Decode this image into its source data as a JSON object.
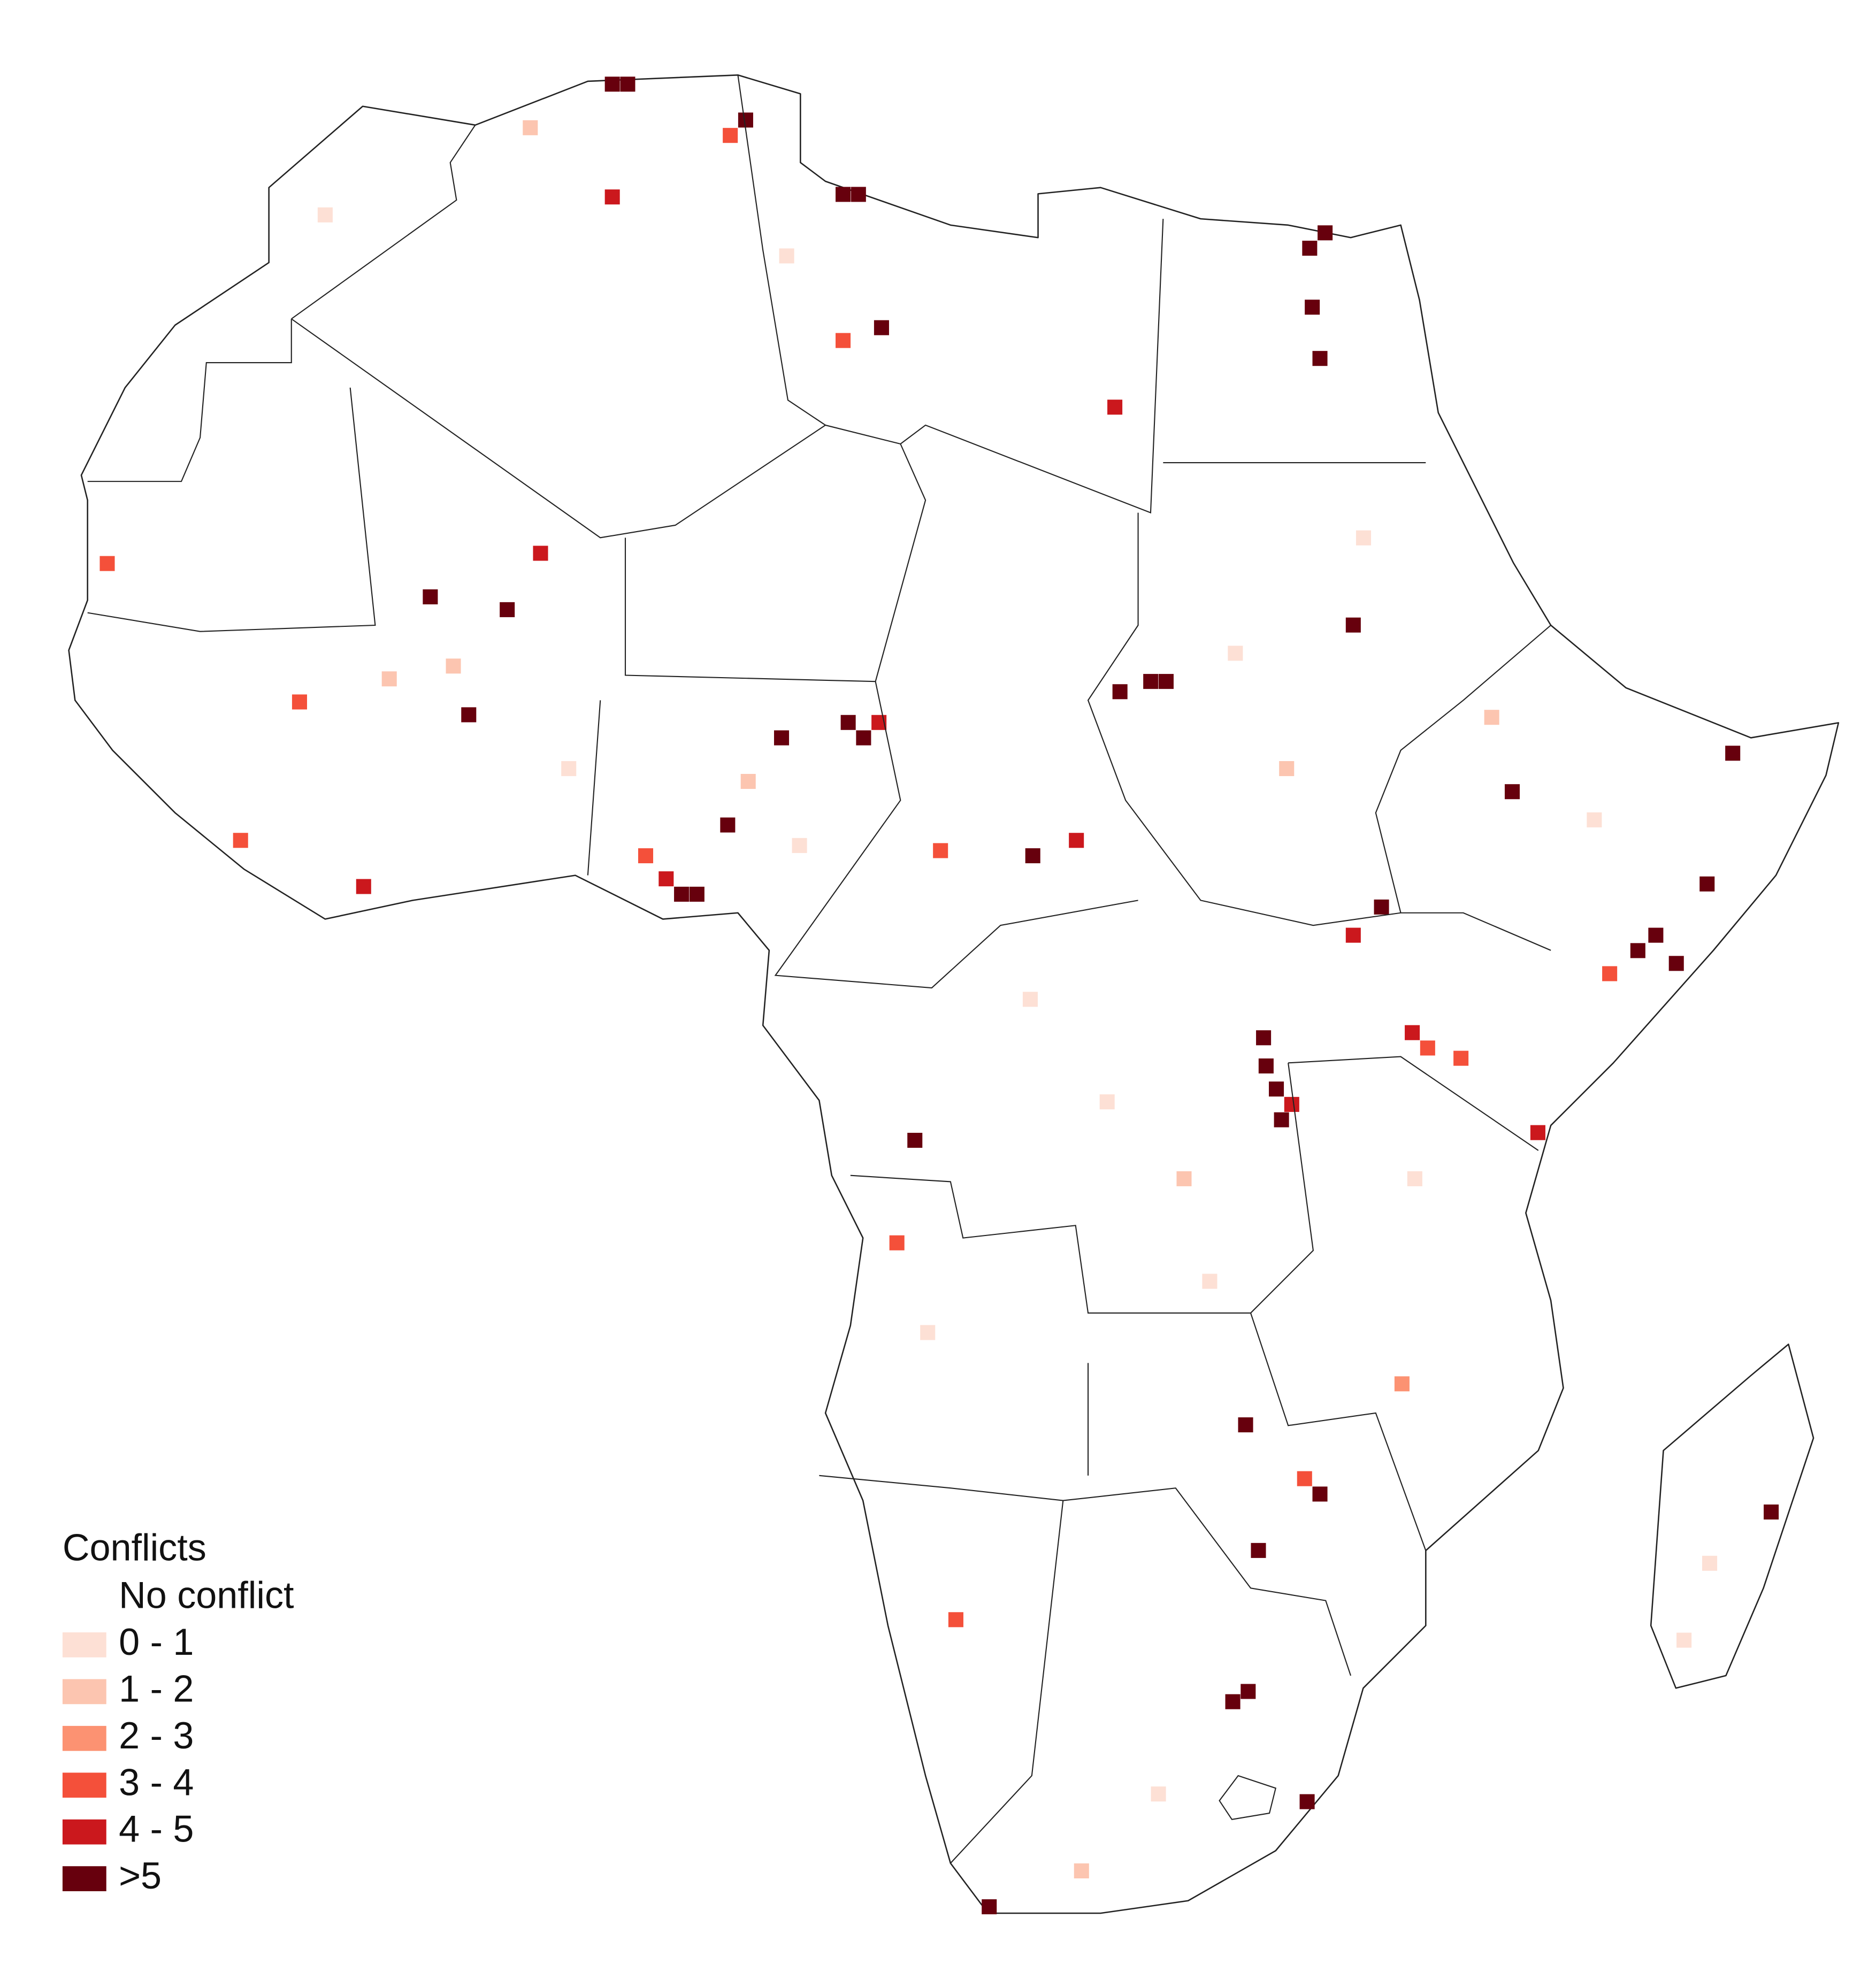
{
  "legend": {
    "title": "Conflicts",
    "items": [
      {
        "label": "No conflict",
        "color": "#ffffff"
      },
      {
        "label": "0 - 1",
        "color": "#fde0d5"
      },
      {
        "label": "1 - 2",
        "color": "#fcc5b0"
      },
      {
        "label": "2 - 3",
        "color": "#fc9272"
      },
      {
        "label": "3 - 4",
        "color": "#f4503a"
      },
      {
        "label": "4 - 5",
        "color": "#cb181d"
      },
      {
        "label": ">5",
        "color": "#67000d"
      }
    ]
  },
  "cells": [
    {
      "lon": 3.7,
      "lat": 36.7,
      "level": 6
    },
    {
      "lon": 4.3,
      "lat": 36.7,
      "level": 6
    },
    {
      "lon": 8.9,
      "lat": 35.3,
      "level": 6
    },
    {
      "lon": 8.3,
      "lat": 34.7,
      "level": 4
    },
    {
      "lon": 12.7,
      "lat": 32.4,
      "level": 6
    },
    {
      "lon": 13.3,
      "lat": 32.4,
      "level": 6
    },
    {
      "lon": 31.5,
      "lat": 30.9,
      "level": 6
    },
    {
      "lon": 30.9,
      "lat": 30.3,
      "level": 6
    },
    {
      "lon": 31.0,
      "lat": 28.0,
      "level": 6
    },
    {
      "lon": 31.3,
      "lat": 26.0,
      "level": 6
    },
    {
      "lon": 23.3,
      "lat": 24.1,
      "level": 5
    },
    {
      "lon": 12.7,
      "lat": 26.7,
      "level": 4
    },
    {
      "lon": 14.2,
      "lat": 27.2,
      "level": 6
    },
    {
      "lon": 3.7,
      "lat": 32.3,
      "level": 5
    },
    {
      "lon": -16.0,
      "lat": 18.0,
      "level": 4
    },
    {
      "lon": -3.4,
      "lat": 16.7,
      "level": 6
    },
    {
      "lon": -0.4,
      "lat": 16.2,
      "level": 6
    },
    {
      "lon": 0.9,
      "lat": 18.4,
      "level": 5
    },
    {
      "lon": -1.9,
      "lat": 12.1,
      "level": 6
    },
    {
      "lon": -8.5,
      "lat": 12.6,
      "level": 4
    },
    {
      "lon": 13.5,
      "lat": 11.2,
      "level": 6
    },
    {
      "lon": 12.9,
      "lat": 11.8,
      "level": 6
    },
    {
      "lon": 14.1,
      "lat": 11.8,
      "level": 5
    },
    {
      "lon": 10.3,
      "lat": 11.2,
      "level": 6
    },
    {
      "lon": 6.4,
      "lat": 5.1,
      "level": 6
    },
    {
      "lon": 7.0,
      "lat": 5.1,
      "level": 6
    },
    {
      "lon": 5.8,
      "lat": 5.7,
      "level": 5
    },
    {
      "lon": 5.0,
      "lat": 6.6,
      "level": 4
    },
    {
      "lon": 8.2,
      "lat": 7.8,
      "level": 6
    },
    {
      "lon": 24.7,
      "lat": 13.4,
      "level": 6
    },
    {
      "lon": 25.3,
      "lat": 13.4,
      "level": 6
    },
    {
      "lon": 23.5,
      "lat": 13.0,
      "level": 6
    },
    {
      "lon": 32.6,
      "lat": 15.6,
      "level": 6
    },
    {
      "lon": 29.1,
      "lat": -0.5,
      "level": 6
    },
    {
      "lon": 29.6,
      "lat": -2.5,
      "level": 6
    },
    {
      "lon": 29.8,
      "lat": -3.7,
      "level": 6
    },
    {
      "lon": 29.2,
      "lat": -1.6,
      "level": 6
    },
    {
      "lon": 30.2,
      "lat": -3.1,
      "level": 5
    },
    {
      "lon": 43.7,
      "lat": 2.9,
      "level": 6
    },
    {
      "lon": 45.2,
      "lat": 2.4,
      "level": 6
    },
    {
      "lon": 44.4,
      "lat": 3.5,
      "level": 6
    },
    {
      "lon": 42.6,
      "lat": 2.0,
      "level": 4
    },
    {
      "lon": 46.4,
      "lat": 5.5,
      "level": 6
    },
    {
      "lon": 34.9,
      "lat": -0.3,
      "level": 5
    },
    {
      "lon": 35.5,
      "lat": -0.9,
      "level": 4
    },
    {
      "lon": 36.8,
      "lat": -1.3,
      "level": 4
    },
    {
      "lon": 31.3,
      "lat": -18.3,
      "level": 6
    },
    {
      "lon": 30.7,
      "lat": -17.7,
      "level": 4
    },
    {
      "lon": 27.9,
      "lat": -26.4,
      "level": 6
    },
    {
      "lon": 28.5,
      "lat": -26.0,
      "level": 6
    },
    {
      "lon": 30.8,
      "lat": -30.3,
      "level": 6
    },
    {
      "lon": 18.4,
      "lat": -34.4,
      "level": 6
    },
    {
      "lon": 48.9,
      "lat": -19.0,
      "level": 6
    },
    {
      "lon": 17.1,
      "lat": -23.2,
      "level": 4
    },
    {
      "lon": 15.5,
      "lat": -4.5,
      "level": 6
    },
    {
      "lon": 39.8,
      "lat": -4.2,
      "level": 5
    },
    {
      "lon": 28.4,
      "lat": -15.6,
      "level": 6
    },
    {
      "lon": 28.9,
      "lat": -20.5,
      "level": 6
    },
    {
      "lon": 38.8,
      "lat": 9.1,
      "level": 6
    },
    {
      "lon": 47.4,
      "lat": 10.6,
      "level": 6
    },
    {
      "lon": 33.7,
      "lat": 4.6,
      "level": 6
    },
    {
      "lon": 32.6,
      "lat": 3.5,
      "level": 5
    },
    {
      "lon": 20.1,
      "lat": 6.6,
      "level": 6
    },
    {
      "lon": 21.8,
      "lat": 7.2,
      "level": 5
    },
    {
      "lon": 16.5,
      "lat": 6.8,
      "level": 4
    },
    {
      "lon": -6.0,
      "lat": 5.4,
      "level": 5
    },
    {
      "lon": -10.8,
      "lat": 7.2,
      "level": 4
    },
    {
      "lon": -7.5,
      "lat": 31.6,
      "level": 1
    },
    {
      "lon": 0.5,
      "lat": 35.0,
      "level": 2
    },
    {
      "lon": 10.5,
      "lat": 30.0,
      "level": 1
    },
    {
      "lon": -5.0,
      "lat": 13.5,
      "level": 2
    },
    {
      "lon": -2.5,
      "lat": 14.0,
      "level": 2
    },
    {
      "lon": 2.0,
      "lat": 10.0,
      "level": 1
    },
    {
      "lon": 9.0,
      "lat": 9.5,
      "level": 2
    },
    {
      "lon": 11.0,
      "lat": 7.0,
      "level": 1
    },
    {
      "lon": 20.0,
      "lat": 1.0,
      "level": 1
    },
    {
      "lon": 23.0,
      "lat": -3.0,
      "level": 1
    },
    {
      "lon": 26.0,
      "lat": -6.0,
      "level": 2
    },
    {
      "lon": 27.0,
      "lat": -10.0,
      "level": 1
    },
    {
      "lon": 35.0,
      "lat": -6.0,
      "level": 1
    },
    {
      "lon": 38.0,
      "lat": 12.0,
      "level": 2
    },
    {
      "lon": 42.0,
      "lat": 8.0,
      "level": 1
    },
    {
      "lon": 30.0,
      "lat": 10.0,
      "level": 2
    },
    {
      "lon": 28.0,
      "lat": 14.5,
      "level": 1
    },
    {
      "lon": 33.0,
      "lat": 19.0,
      "level": 1
    },
    {
      "lon": 16.0,
      "lat": -12.0,
      "level": 1
    },
    {
      "lon": 25.0,
      "lat": -30.0,
      "level": 1
    },
    {
      "lon": 22.0,
      "lat": -33.0,
      "level": 2
    },
    {
      "lon": 46.5,
      "lat": -21.0,
      "level": 1
    },
    {
      "lon": 45.5,
      "lat": -24.0,
      "level": 1
    },
    {
      "lon": 34.5,
      "lat": -14.0,
      "level": 3
    },
    {
      "lon": 14.8,
      "lat": -8.5,
      "level": 4
    }
  ]
}
